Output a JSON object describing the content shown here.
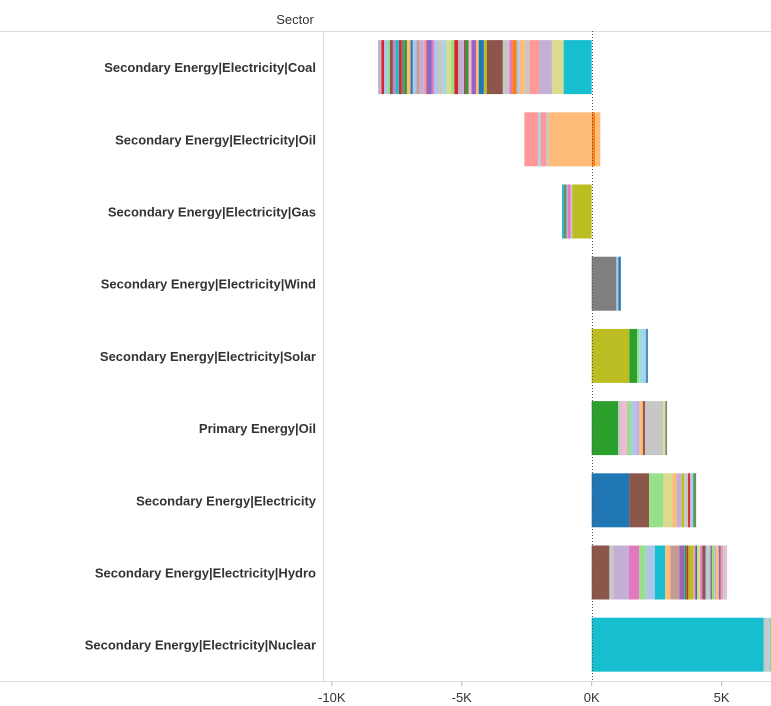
{
  "chart_data": {
    "type": "bar",
    "orientation": "horizontal",
    "stacked": true,
    "header_label": "Sector",
    "xlim": [
      -10300,
      6900
    ],
    "x_ticks": [
      {
        "value": -10000,
        "label": "-10K"
      },
      {
        "value": -5000,
        "label": "-5K"
      },
      {
        "value": 0,
        "label": "0K"
      },
      {
        "value": 5000,
        "label": "5K"
      }
    ],
    "zero_line": "dotted",
    "legend": "none",
    "categories": [
      {
        "name": "Secondary Energy|Electricity|Coal",
        "segments": [
          {
            "value": -1080,
            "color": "#17becf"
          },
          {
            "value": -450,
            "color": "#dbdb8d"
          },
          {
            "value": -500,
            "color": "#c5b0d5"
          },
          {
            "value": -360,
            "color": "#ff9896"
          },
          {
            "value": -180,
            "color": "#c7c7c7"
          },
          {
            "value": -200,
            "color": "#ffbb78"
          },
          {
            "value": -120,
            "color": "#aec7e8"
          },
          {
            "value": -160,
            "color": "#ff7f0e"
          },
          {
            "value": -120,
            "color": "#e377c2"
          },
          {
            "value": -250,
            "color": "#c7c7c7"
          },
          {
            "value": -620,
            "color": "#8c564b"
          },
          {
            "value": -110,
            "color": "#bcbd22"
          },
          {
            "value": -200,
            "color": "#1f77b4"
          },
          {
            "value": -100,
            "color": "#ffbb78"
          },
          {
            "value": -180,
            "color": "#9467bd"
          },
          {
            "value": -110,
            "color": "#f7b6d2"
          },
          {
            "value": -100,
            "color": "#2ca02c"
          },
          {
            "value": -80,
            "color": "#8c564b"
          },
          {
            "value": -220,
            "color": "#c5b0d5"
          },
          {
            "value": -150,
            "color": "#d62728"
          },
          {
            "value": -120,
            "color": "#98df8a"
          },
          {
            "value": -180,
            "color": "#dbdb8d"
          },
          {
            "value": -120,
            "color": "#9edae5"
          },
          {
            "value": -200,
            "color": "#c7c7c7"
          },
          {
            "value": -160,
            "color": "#aec7e8"
          },
          {
            "value": -80,
            "color": "#e377c2"
          },
          {
            "value": -220,
            "color": "#9467bd"
          },
          {
            "value": -90,
            "color": "#ff9896"
          },
          {
            "value": -170,
            "color": "#c5b0d5"
          },
          {
            "value": -110,
            "color": "#c49c94"
          },
          {
            "value": -150,
            "color": "#aec7e8"
          },
          {
            "value": -80,
            "color": "#1f77b4"
          },
          {
            "value": -140,
            "color": "#ffbb78"
          },
          {
            "value": -90,
            "color": "#2ca02c"
          },
          {
            "value": -120,
            "color": "#7f7f7f"
          },
          {
            "value": -100,
            "color": "#d62728"
          },
          {
            "value": -140,
            "color": "#17becf"
          },
          {
            "value": -90,
            "color": "#e377c2"
          },
          {
            "value": -120,
            "color": "#8c564b"
          },
          {
            "value": -90,
            "color": "#98df8a"
          },
          {
            "value": -130,
            "color": "#aec7e8"
          },
          {
            "value": -100,
            "color": "#d62728"
          },
          {
            "value": -130,
            "color": "#c5b0d5"
          }
        ]
      },
      {
        "name": "Secondary Energy|Electricity|Oil",
        "segments": [
          {
            "value": 130,
            "color": "#ff7f0e"
          },
          {
            "value": 200,
            "color": "#ffbb78"
          },
          {
            "value": -1650,
            "color": "#ffbb78"
          },
          {
            "value": -100,
            "color": "#c7c7c7"
          },
          {
            "value": -200,
            "color": "#ff9896"
          },
          {
            "value": -50,
            "color": "#aec7e8"
          },
          {
            "value": -60,
            "color": "#9edae5"
          },
          {
            "value": -530,
            "color": "#ff9896"
          }
        ]
      },
      {
        "name": "Secondary Energy|Electricity|Gas",
        "segments": [
          {
            "value": -750,
            "color": "#bcbd22"
          },
          {
            "value": -60,
            "color": "#c7c7c7"
          },
          {
            "value": -100,
            "color": "#e377c2"
          },
          {
            "value": -60,
            "color": "#c5b0d5"
          },
          {
            "value": -70,
            "color": "#7f7f7f"
          },
          {
            "value": -40,
            "color": "#2ca02c"
          },
          {
            "value": -60,
            "color": "#17becf"
          }
        ]
      },
      {
        "name": "Secondary Energy|Electricity|Wind",
        "segments": [
          {
            "value": 950,
            "color": "#7f7f7f"
          },
          {
            "value": 80,
            "color": "#aec7e8"
          },
          {
            "value": 90,
            "color": "#1f77b4"
          }
        ]
      },
      {
        "name": "Secondary Energy|Electricity|Solar",
        "segments": [
          {
            "value": 1450,
            "color": "#bcbd22"
          },
          {
            "value": 300,
            "color": "#2ca02c"
          },
          {
            "value": 80,
            "color": "#98df8a"
          },
          {
            "value": 200,
            "color": "#9edae5"
          },
          {
            "value": 70,
            "color": "#aec7e8"
          },
          {
            "value": 60,
            "color": "#1f77b4"
          }
        ]
      },
      {
        "name": "Primary Energy|Oil",
        "segments": [
          {
            "value": 1020,
            "color": "#2ca02c"
          },
          {
            "value": 140,
            "color": "#c7c7c7"
          },
          {
            "value": 200,
            "color": "#f7b6d2"
          },
          {
            "value": 150,
            "color": "#98df8a"
          },
          {
            "value": 200,
            "color": "#aec7e8"
          },
          {
            "value": 140,
            "color": "#c5b0d5"
          },
          {
            "value": 120,
            "color": "#ffbb78"
          },
          {
            "value": 80,
            "color": "#8c564b"
          },
          {
            "value": 700,
            "color": "#c7c7c7"
          },
          {
            "value": 90,
            "color": "#dbdb8d"
          },
          {
            "value": 60,
            "color": "#7f7f7f"
          }
        ]
      },
      {
        "name": "Secondary Energy|Electricity",
        "segments": [
          {
            "value": 1450,
            "color": "#1f77b4"
          },
          {
            "value": 760,
            "color": "#8c564b"
          },
          {
            "value": 550,
            "color": "#98df8a"
          },
          {
            "value": 350,
            "color": "#dbdb8d"
          },
          {
            "value": 150,
            "color": "#ffbb78"
          },
          {
            "value": 200,
            "color": "#c5b0d5"
          },
          {
            "value": 100,
            "color": "#bcbd22"
          },
          {
            "value": 150,
            "color": "#c7c7c7"
          },
          {
            "value": 80,
            "color": "#d62728"
          },
          {
            "value": 120,
            "color": "#aec7e8"
          },
          {
            "value": 60,
            "color": "#2ca02c"
          },
          {
            "value": 50,
            "color": "#7f7f7f"
          }
        ]
      },
      {
        "name": "Secondary Energy|Electricity|Hydro",
        "segments": [
          {
            "value": 680,
            "color": "#8c564b"
          },
          {
            "value": 150,
            "color": "#c7c7c7"
          },
          {
            "value": 600,
            "color": "#c5b0d5"
          },
          {
            "value": 400,
            "color": "#e377c2"
          },
          {
            "value": 250,
            "color": "#98df8a"
          },
          {
            "value": 350,
            "color": "#aec7e8"
          },
          {
            "value": 400,
            "color": "#17becf"
          },
          {
            "value": 200,
            "color": "#ffbb78"
          },
          {
            "value": 350,
            "color": "#c49c94"
          },
          {
            "value": 200,
            "color": "#9467bd"
          },
          {
            "value": 80,
            "color": "#2ca02c"
          },
          {
            "value": 60,
            "color": "#d62728"
          },
          {
            "value": 180,
            "color": "#bcbd22"
          },
          {
            "value": 90,
            "color": "#ff9896"
          },
          {
            "value": 70,
            "color": "#1f77b4"
          },
          {
            "value": 120,
            "color": "#dbdb8d"
          },
          {
            "value": 80,
            "color": "#e377c2"
          },
          {
            "value": 120,
            "color": "#8c564b"
          },
          {
            "value": 70,
            "color": "#aec7e8"
          },
          {
            "value": 120,
            "color": "#c7c7c7"
          },
          {
            "value": 60,
            "color": "#7f7f7f"
          },
          {
            "value": 100,
            "color": "#98df8a"
          },
          {
            "value": 60,
            "color": "#c5b0d5"
          },
          {
            "value": 100,
            "color": "#ffbb78"
          },
          {
            "value": 80,
            "color": "#9467bd"
          },
          {
            "value": 90,
            "color": "#ff9896"
          },
          {
            "value": 70,
            "color": "#9edae5"
          },
          {
            "value": 80,
            "color": "#f7b6d2"
          }
        ]
      },
      {
        "name": "Secondary Energy|Electricity|Nuclear",
        "segments": [
          {
            "value": 6620,
            "color": "#17becf"
          },
          {
            "value": 150,
            "color": "#c7c7c7"
          },
          {
            "value": 100,
            "color": "#9edae5"
          },
          {
            "value": 80,
            "color": "#bcbd22"
          }
        ]
      }
    ]
  }
}
